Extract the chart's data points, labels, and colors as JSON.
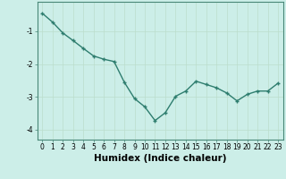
{
  "x": [
    0,
    1,
    2,
    3,
    4,
    5,
    6,
    7,
    8,
    9,
    10,
    11,
    12,
    13,
    14,
    15,
    16,
    17,
    18,
    19,
    20,
    21,
    22,
    23
  ],
  "y": [
    -0.45,
    -0.72,
    -1.05,
    -1.28,
    -1.52,
    -1.75,
    -1.85,
    -1.92,
    -2.55,
    -3.05,
    -3.3,
    -3.72,
    -3.48,
    -2.98,
    -2.82,
    -2.52,
    -2.62,
    -2.72,
    -2.88,
    -3.12,
    -2.92,
    -2.82,
    -2.82,
    -2.58
  ],
  "line_color": "#2e7d6e",
  "marker": "+",
  "marker_size": 3.5,
  "background_color": "#cceee8",
  "grid_color": "#bbddcc",
  "xlabel": "Humidex (Indice chaleur)",
  "ylim": [
    -4.3,
    -0.1
  ],
  "xlim": [
    -0.5,
    23.5
  ],
  "yticks": [
    -4,
    -3,
    -2,
    -1
  ],
  "xticks": [
    0,
    1,
    2,
    3,
    4,
    5,
    6,
    7,
    8,
    9,
    10,
    11,
    12,
    13,
    14,
    15,
    16,
    17,
    18,
    19,
    20,
    21,
    22,
    23
  ],
  "tick_fontsize": 5.5,
  "xlabel_fontsize": 7.5,
  "linewidth": 1.0,
  "spine_color": "#4a8878"
}
